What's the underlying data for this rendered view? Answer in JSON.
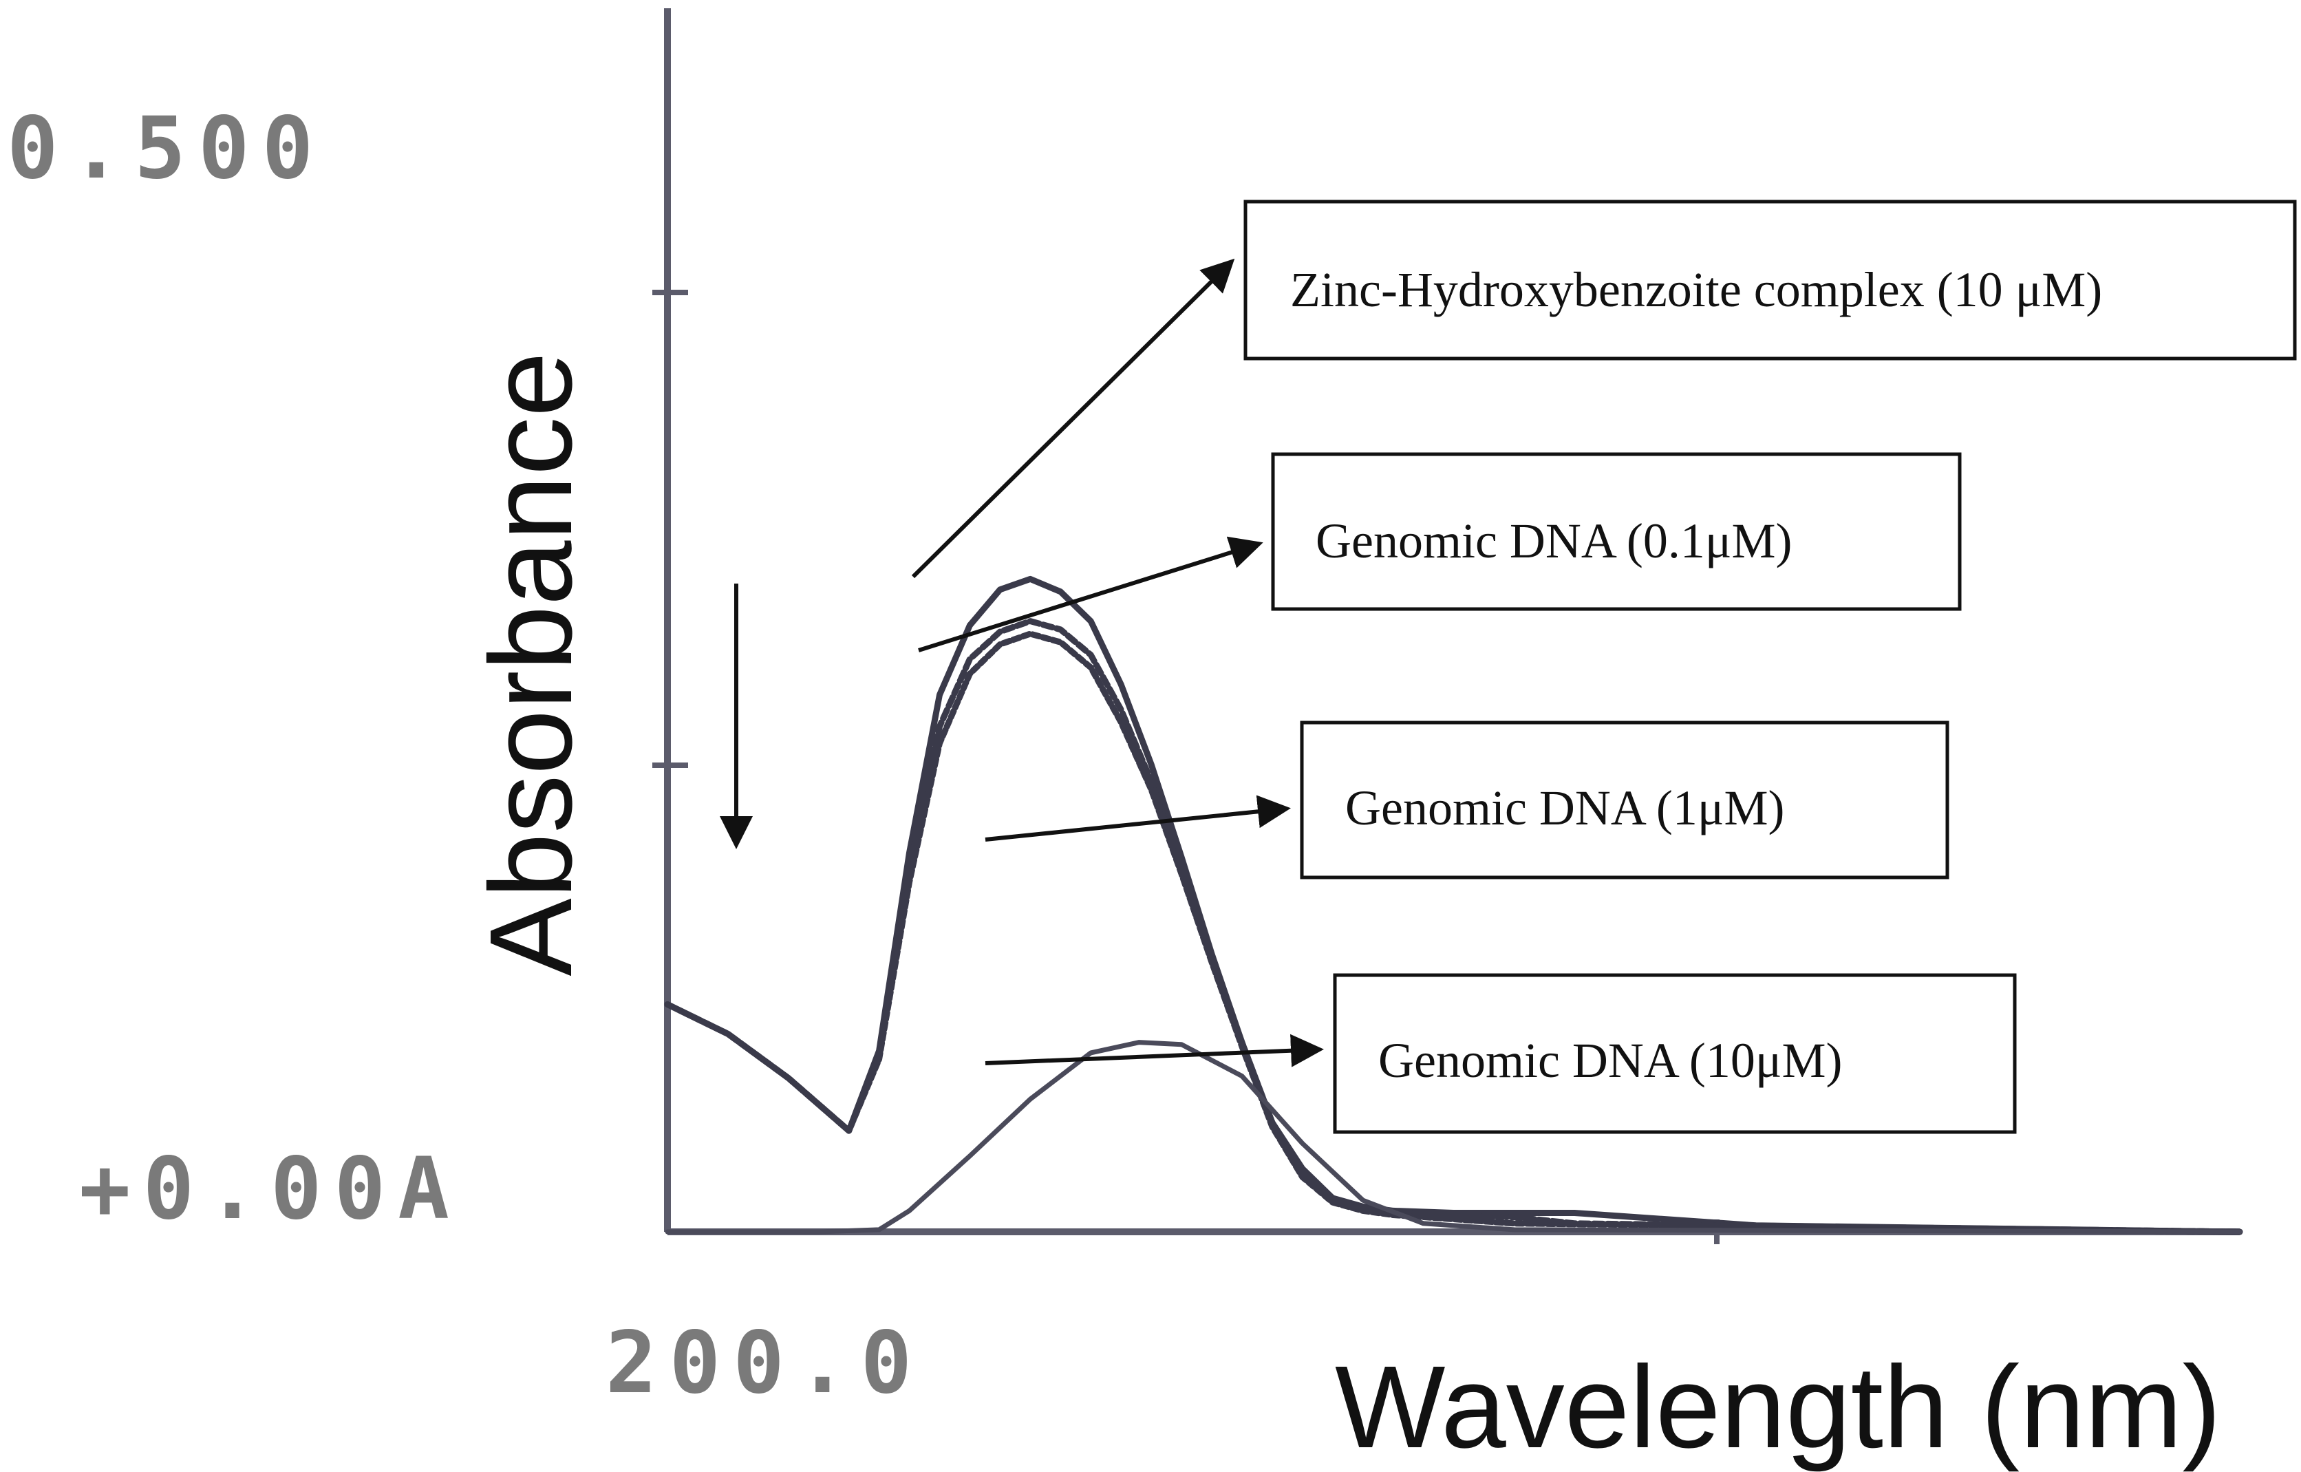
{
  "chart_data": {
    "type": "line",
    "xlabel": "Wavelength (nm)",
    "ylabel": "Absorbance",
    "y_tick_labels": {
      "top": "0.500",
      "bottom": "+0.00A"
    },
    "x_tick_labels": {
      "left": "200.0"
    },
    "xlim": [
      200,
      460
    ],
    "ylim": [
      0,
      0.5
    ],
    "grid": false,
    "legend": "callout-boxes-right",
    "series": [
      {
        "name": "Zinc-Hydroxybenzoite complex (10 μM)",
        "color": "#3a3a4a",
        "x": [
          200,
          210,
          220,
          230,
          235,
          240,
          245,
          250,
          255,
          260,
          265,
          270,
          275,
          280,
          285,
          290,
          295,
          300,
          305,
          310,
          315,
          320,
          330,
          340,
          350,
          360,
          380,
          460
        ],
        "y": [
          0.108,
          0.094,
          0.073,
          0.048,
          0.086,
          0.18,
          0.255,
          0.288,
          0.305,
          0.31,
          0.304,
          0.29,
          0.26,
          0.222,
          0.178,
          0.132,
          0.09,
          0.052,
          0.03,
          0.016,
          0.012,
          0.01,
          0.009,
          0.009,
          0.009,
          0.007,
          0.003,
          0.0
        ]
      },
      {
        "name": "Genomic DNA (0.1μM)",
        "color": "#3a3a4a",
        "x": [
          200,
          210,
          220,
          230,
          235,
          240,
          245,
          250,
          255,
          260,
          265,
          270,
          275,
          280,
          285,
          290,
          295,
          300,
          305,
          310,
          315,
          320,
          330,
          340,
          350,
          460
        ],
        "y": [
          0.108,
          0.094,
          0.073,
          0.048,
          0.083,
          0.172,
          0.24,
          0.272,
          0.285,
          0.29,
          0.286,
          0.274,
          0.248,
          0.214,
          0.172,
          0.13,
          0.09,
          0.052,
          0.028,
          0.015,
          0.011,
          0.009,
          0.008,
          0.007,
          0.004,
          0.0
        ]
      },
      {
        "name": "Genomic DNA (1μM)",
        "color": "#3a3a4a",
        "x": [
          200,
          210,
          220,
          230,
          235,
          240,
          245,
          250,
          255,
          260,
          265,
          270,
          275,
          280,
          285,
          290,
          295,
          300,
          305,
          310,
          315,
          320,
          330,
          340,
          460
        ],
        "y": [
          0.108,
          0.094,
          0.073,
          0.048,
          0.082,
          0.166,
          0.232,
          0.265,
          0.279,
          0.284,
          0.28,
          0.268,
          0.242,
          0.21,
          0.17,
          0.128,
          0.088,
          0.05,
          0.026,
          0.014,
          0.01,
          0.008,
          0.006,
          0.004,
          0.0
        ]
      },
      {
        "name": "Genomic DNA (10μM)",
        "color": "#4a4a5a",
        "x": [
          200,
          225,
          235,
          240,
          250,
          260,
          270,
          278,
          285,
          295,
          305,
          315,
          325,
          340,
          460
        ],
        "y": [
          0.0,
          0.0,
          0.001,
          0.01,
          0.036,
          0.063,
          0.085,
          0.09,
          0.089,
          0.074,
          0.042,
          0.015,
          0.004,
          0.001,
          0.0
        ]
      }
    ]
  }
}
